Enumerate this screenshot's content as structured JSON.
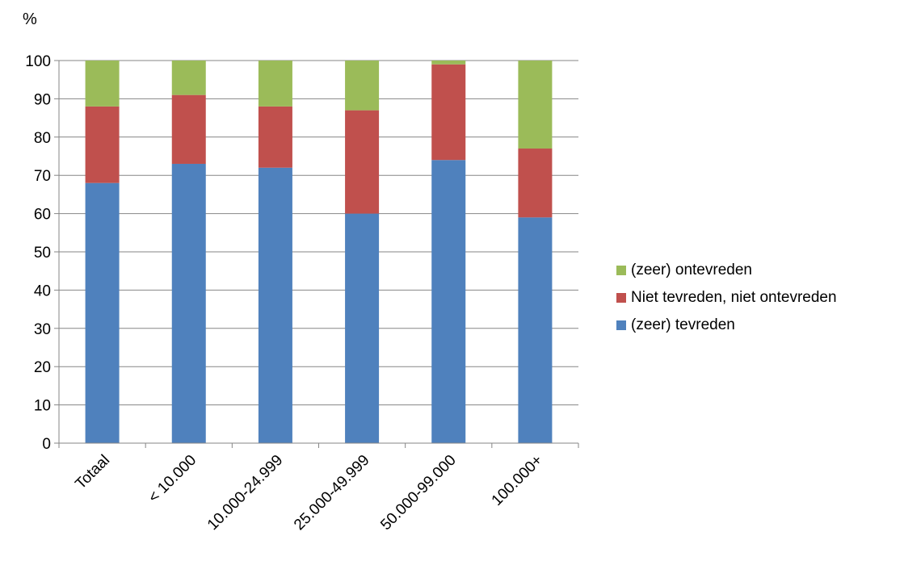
{
  "chart_data": {
    "type": "bar",
    "stacked": true,
    "ylabel": "%",
    "ylim": [
      0,
      100
    ],
    "yticks": [
      0,
      10,
      20,
      30,
      40,
      50,
      60,
      70,
      80,
      90,
      100
    ],
    "grid": true,
    "legend_position": "right",
    "categories": [
      "Totaal",
      "< 10.000",
      "10.000-24.999",
      "25.000-49.999",
      "50.000-99.000",
      "100.000+"
    ],
    "series": [
      {
        "name": "(zeer) tevreden",
        "color": "#4F81BD",
        "values": [
          68,
          73,
          72,
          60,
          74,
          59
        ]
      },
      {
        "name": "Niet tevreden, niet ontevreden",
        "color": "#C0504D",
        "values": [
          20,
          18,
          16,
          27,
          25,
          18
        ]
      },
      {
        "name": "(zeer) ontevreden",
        "color": "#9BBB59",
        "values": [
          12,
          9,
          12,
          13,
          1,
          23
        ]
      }
    ]
  }
}
